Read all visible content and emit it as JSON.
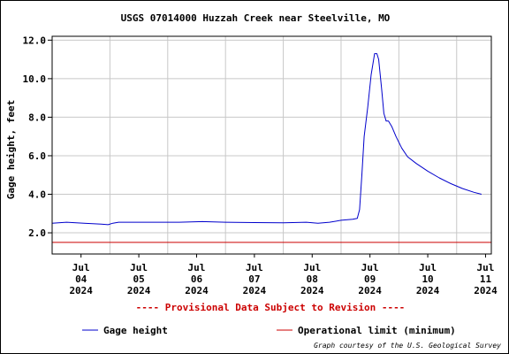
{
  "chart_data": {
    "type": "line",
    "title": "USGS 07014000 Huzzah Creek near Steelville, MO",
    "ylabel": "Gage height, feet",
    "xlabel": "",
    "ylim": [
      0.9,
      12.2
    ],
    "xlim": [
      0.0,
      7.6
    ],
    "grid": true,
    "y_ticks": [
      {
        "value": 2.0,
        "label": "2.0"
      },
      {
        "value": 4.0,
        "label": "4.0"
      },
      {
        "value": 6.0,
        "label": "6.0"
      },
      {
        "value": 8.0,
        "label": "8.0"
      },
      {
        "value": 10.0,
        "label": "10.0"
      },
      {
        "value": 12.0,
        "label": "12.0"
      }
    ],
    "x_ticks": [
      {
        "value": 0.5,
        "lines": [
          "Jul",
          "04",
          "2024"
        ]
      },
      {
        "value": 1.5,
        "lines": [
          "Jul",
          "05",
          "2024"
        ]
      },
      {
        "value": 2.5,
        "lines": [
          "Jul",
          "06",
          "2024"
        ]
      },
      {
        "value": 3.5,
        "lines": [
          "Jul",
          "07",
          "2024"
        ]
      },
      {
        "value": 4.5,
        "lines": [
          "Jul",
          "08",
          "2024"
        ]
      },
      {
        "value": 5.5,
        "lines": [
          "Jul",
          "09",
          "2024"
        ]
      },
      {
        "value": 6.5,
        "lines": [
          "Jul",
          "10",
          "2024"
        ]
      },
      {
        "value": 7.5,
        "lines": [
          "Jul",
          "11",
          "2024"
        ]
      }
    ],
    "series": [
      {
        "name": "Gage height",
        "color": "#0000cc",
        "x": [
          0.0,
          0.25,
          0.55,
          0.85,
          0.97,
          1.05,
          1.15,
          1.4,
          1.8,
          2.2,
          2.6,
          3.0,
          3.5,
          4.0,
          4.4,
          4.6,
          4.8,
          5.0,
          5.2,
          5.28,
          5.32,
          5.36,
          5.4,
          5.46,
          5.52,
          5.58,
          5.62,
          5.65,
          5.7,
          5.74,
          5.78,
          5.82,
          5.88,
          5.95,
          6.05,
          6.15,
          6.3,
          6.5,
          6.7,
          6.9,
          7.1,
          7.3,
          7.43
        ],
        "y": [
          2.5,
          2.55,
          2.5,
          2.45,
          2.42,
          2.5,
          2.55,
          2.55,
          2.55,
          2.55,
          2.58,
          2.55,
          2.53,
          2.52,
          2.55,
          2.5,
          2.55,
          2.65,
          2.7,
          2.75,
          3.2,
          5.0,
          7.0,
          8.5,
          10.2,
          11.3,
          11.3,
          11.0,
          9.5,
          8.2,
          7.8,
          7.8,
          7.5,
          7.0,
          6.4,
          5.95,
          5.6,
          5.2,
          4.85,
          4.55,
          4.3,
          4.1,
          4.0
        ]
      },
      {
        "name": "Operational limit (minimum)",
        "color": "#cc0000",
        "x": [
          0.0,
          7.6
        ],
        "y": [
          1.5,
          1.5
        ]
      }
    ]
  },
  "notice": "---- Provisional Data Subject to Revision ----",
  "credit": "Graph courtesy of the U.S. Geological Survey",
  "colors": {
    "plot_border": "#000000",
    "grid": "#c8c8c8",
    "notice": "#cc0000"
  }
}
